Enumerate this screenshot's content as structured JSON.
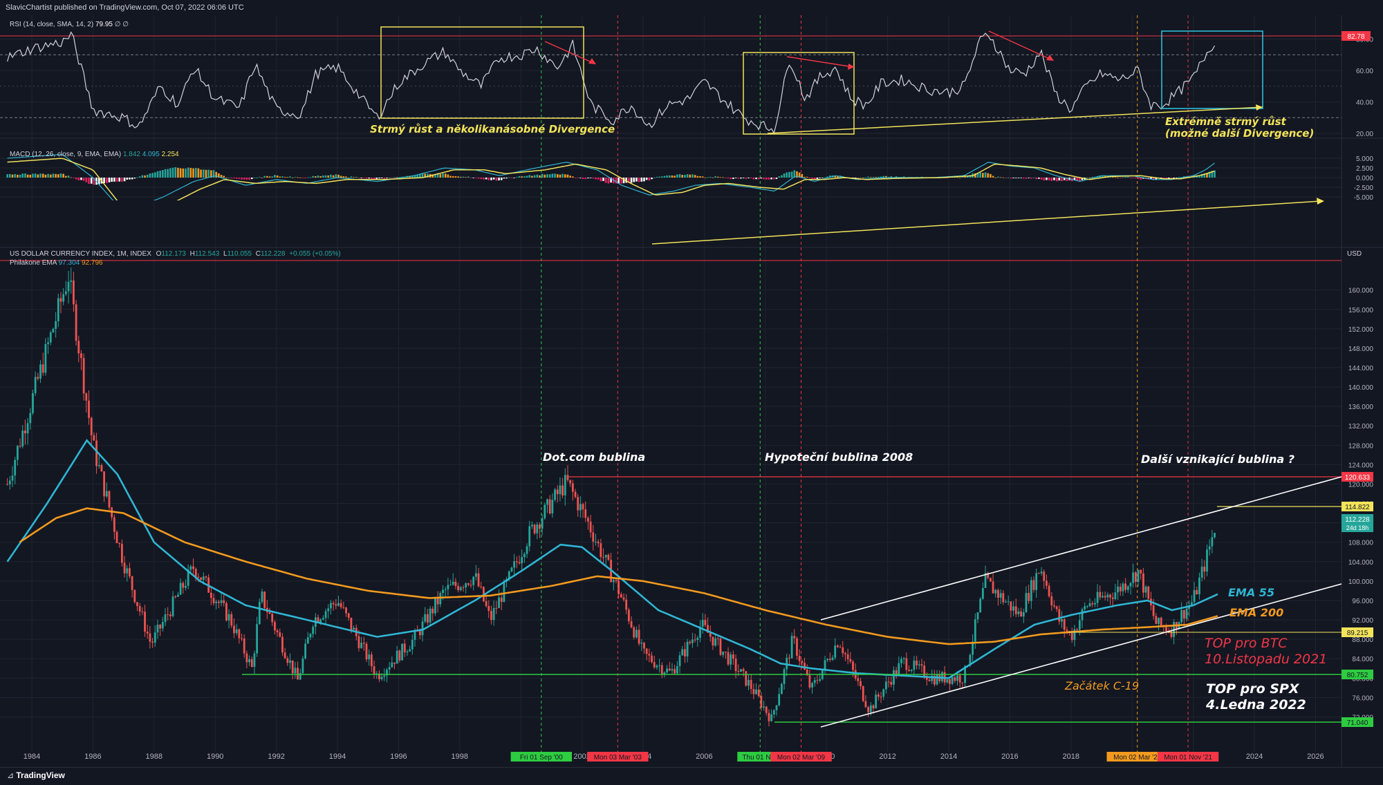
{
  "header": {
    "published": "SlavicChartist published on TradingView.com, Oct 07, 2022 06:06 UTC"
  },
  "footer": {
    "brand": "TradingView"
  },
  "rsi": {
    "title": "RSI (14, close, SMA, 14, 2)",
    "value": "79.95",
    "extra": "∅ ∅",
    "axis_labels": [
      "80.00",
      "60.00",
      "40.00",
      "20.00"
    ],
    "badge": "82.78",
    "note_left": "Strmý růst a několikanásobné Divergence",
    "note_right_1": "Extrémně strmý růst",
    "note_right_2": "(možné další Divergence)"
  },
  "macd": {
    "title": "MACD (12, 26, close, 9, EMA, EMA)",
    "v1": "1.842",
    "v2": "4.095",
    "v3": "2.254",
    "axis_labels": [
      "5.000",
      "2.500",
      "0.000",
      "-2.500",
      "-5.000"
    ]
  },
  "main": {
    "title": "US DOLLAR CURRENCY INDEX, 1M, INDEX",
    "o_label": "O",
    "o": "112.173",
    "h_label": "H",
    "h": "112.543",
    "l_label": "L",
    "l": "110.055",
    "c_label": "C",
    "c": "112.228",
    "change": "+0.055 (+0.05%)",
    "ema_title": "Philakone EMA",
    "ema_v1": "97.304",
    "ema_v2": "92.796",
    "currency": "USD",
    "annot_dotcom": "Dot.com bublina",
    "annot_mortgage": "Hypoteční bublina 2008",
    "annot_next": "Další vznikající bublina ?",
    "annot_ema55": "EMA 55",
    "annot_ema200": "EMA 200",
    "annot_btc_1": "TOP pro BTC",
    "annot_btc_2": "10.Listopadu 2021",
    "annot_c19": "Začátek C-19",
    "annot_spx_1": "TOP pro SPX",
    "annot_spx_2": "4.Ledna 2022",
    "badges": {
      "top": "120.633",
      "yellow": "114.822",
      "price": "112.228",
      "countdown": "24d 18h",
      "orange": "89.215",
      "green1": "80.752",
      "green2": "71.040"
    }
  },
  "colors": {
    "background": "#131722",
    "grid": "#1f2430",
    "up": "#26a69a",
    "down": "#ef5350",
    "ema55": "#2fb6d4",
    "ema200": "#f39a1e",
    "yellow": "#f3e45a",
    "red_line": "#f23645",
    "green_line": "#2ecc40",
    "cyan_box": "#2fc9e3"
  },
  "chart_data": {
    "type": "candlestick",
    "title": "US DOLLAR CURRENCY INDEX, 1M, INDEX",
    "x_ticks": [
      "1984",
      "1986",
      "1988",
      "1990",
      "1992",
      "1994",
      "1996",
      "1998",
      "2000",
      "2002",
      "2004",
      "2006",
      "2008",
      "2010",
      "2012",
      "2014",
      "2016",
      "2018",
      "2020",
      "2022",
      "2024",
      "2026"
    ],
    "y_ticks": [
      72,
      76,
      80,
      84,
      88,
      92,
      96,
      100,
      104,
      108,
      112,
      116,
      120,
      124,
      128,
      132,
      136,
      140,
      144,
      148,
      152,
      156,
      160
    ],
    "ylim": [
      70,
      163
    ],
    "x_range": [
      1983.2,
      2027.0
    ],
    "price_anchors": [
      [
        1983.2,
        120
      ],
      [
        1985.2,
        163.0
      ],
      [
        1986.0,
        128
      ],
      [
        1987.0,
        104
      ],
      [
        1987.9,
        87
      ],
      [
        1989.3,
        103
      ],
      [
        1990.5,
        92
      ],
      [
        1991.2,
        82
      ],
      [
        1991.5,
        97
      ],
      [
        1992.7,
        79.5
      ],
      [
        1993.2,
        92
      ],
      [
        1994.0,
        96
      ],
      [
        1995.3,
        80.5
      ],
      [
        1996.5,
        88
      ],
      [
        1997.5,
        98
      ],
      [
        1998.5,
        101
      ],
      [
        1999.0,
        92
      ],
      [
        2000.3,
        110
      ],
      [
        2001.5,
        120.5
      ],
      [
        2002.2,
        112
      ],
      [
        2003.2,
        98
      ],
      [
        2004.0,
        85
      ],
      [
        2004.9,
        81
      ],
      [
        2005.9,
        91
      ],
      [
        2006.8,
        84
      ],
      [
        2007.5,
        78.5
      ],
      [
        2008.2,
        71.5
      ],
      [
        2008.9,
        88
      ],
      [
        2009.5,
        77.5
      ],
      [
        2010.4,
        88
      ],
      [
        2011.4,
        73.5
      ],
      [
        2012.5,
        83.5
      ],
      [
        2013.5,
        80
      ],
      [
        2014.5,
        80.2
      ],
      [
        2015.2,
        100
      ],
      [
        2016.3,
        93
      ],
      [
        2017.0,
        103
      ],
      [
        2017.6,
        92
      ],
      [
        2018.0,
        88.5
      ],
      [
        2018.5,
        95
      ],
      [
        2019.5,
        98
      ],
      [
        2020.2,
        102
      ],
      [
        2020.8,
        91
      ],
      [
        2021.3,
        90
      ],
      [
        2021.6,
        93
      ],
      [
        2022.0,
        96
      ],
      [
        2022.4,
        104
      ],
      [
        2022.76,
        112.2
      ]
    ],
    "ema55_anchors": [
      [
        1983.2,
        104
      ],
      [
        1984.5,
        116
      ],
      [
        1985.8,
        129
      ],
      [
        1986.8,
        122
      ],
      [
        1988.0,
        108
      ],
      [
        1989.5,
        100
      ],
      [
        1991.0,
        95
      ],
      [
        1993.0,
        92
      ],
      [
        1995.3,
        88.5
      ],
      [
        1996.8,
        90
      ],
      [
        1998.5,
        96
      ],
      [
        2000.0,
        102
      ],
      [
        2001.3,
        107.5
      ],
      [
        2002.0,
        107
      ],
      [
        2003.0,
        102
      ],
      [
        2004.5,
        94
      ],
      [
        2006.0,
        90
      ],
      [
        2007.5,
        86
      ],
      [
        2008.5,
        83
      ],
      [
        2009.5,
        82
      ],
      [
        2011.0,
        81
      ],
      [
        2012.5,
        80.5
      ],
      [
        2014.0,
        80
      ],
      [
        2015.5,
        86
      ],
      [
        2016.8,
        91
      ],
      [
        2018.0,
        93
      ],
      [
        2019.5,
        95
      ],
      [
        2020.5,
        96
      ],
      [
        2021.3,
        94
      ],
      [
        2022.0,
        95
      ],
      [
        2022.8,
        97.3
      ]
    ],
    "ema200_anchors": [
      [
        1983.6,
        108
      ],
      [
        1984.8,
        113
      ],
      [
        1985.8,
        115
      ],
      [
        1987.0,
        114
      ],
      [
        1989.0,
        108
      ],
      [
        1991.0,
        104
      ],
      [
        1993.0,
        100.5
      ],
      [
        1995.0,
        98
      ],
      [
        1997.0,
        96.5
      ],
      [
        1999.0,
        97
      ],
      [
        2001.0,
        99
      ],
      [
        2002.5,
        101
      ],
      [
        2004.0,
        100
      ],
      [
        2006.0,
        97.5
      ],
      [
        2008.0,
        94
      ],
      [
        2010.0,
        91
      ],
      [
        2012.0,
        88.5
      ],
      [
        2014.0,
        87
      ],
      [
        2015.5,
        87.5
      ],
      [
        2017.0,
        89
      ],
      [
        2019.0,
        90
      ],
      [
        2020.5,
        90.5
      ],
      [
        2021.8,
        91
      ],
      [
        2022.8,
        92.8
      ]
    ],
    "rsi_range": [
      10,
      90
    ],
    "rsi_anchors": [
      [
        1983.2,
        68
      ],
      [
        1984.0,
        74
      ],
      [
        1985.0,
        78
      ],
      [
        1985.3,
        83
      ],
      [
        1986.0,
        35
      ],
      [
        1987.0,
        30
      ],
      [
        1987.5,
        24
      ],
      [
        1988.2,
        50
      ],
      [
        1988.8,
        38
      ],
      [
        1989.3,
        62
      ],
      [
        1990.0,
        42
      ],
      [
        1990.8,
        36
      ],
      [
        1991.3,
        64
      ],
      [
        1992.0,
        35
      ],
      [
        1992.8,
        32
      ],
      [
        1993.3,
        58
      ],
      [
        1994.0,
        62
      ],
      [
        1994.8,
        42
      ],
      [
        1995.3,
        30
      ],
      [
        1996.0,
        52
      ],
      [
        1996.8,
        64
      ],
      [
        1997.5,
        72
      ],
      [
        1998.0,
        60
      ],
      [
        1998.7,
        50
      ],
      [
        1999.3,
        68
      ],
      [
        2000.0,
        70
      ],
      [
        2000.5,
        74
      ],
      [
        2001.2,
        62
      ],
      [
        2001.7,
        76
      ],
      [
        2002.3,
        38
      ],
      [
        2003.0,
        28
      ],
      [
        2003.6,
        38
      ],
      [
        2004.2,
        25
      ],
      [
        2004.8,
        38
      ],
      [
        2005.5,
        42
      ],
      [
        2006.0,
        53
      ],
      [
        2006.7,
        40
      ],
      [
        2007.3,
        30
      ],
      [
        2008.0,
        24
      ],
      [
        2008.3,
        23
      ],
      [
        2008.8,
        68
      ],
      [
        2009.3,
        42
      ],
      [
        2009.8,
        56
      ],
      [
        2010.3,
        62
      ],
      [
        2010.8,
        42
      ],
      [
        2011.3,
        38
      ],
      [
        2011.8,
        52
      ],
      [
        2012.5,
        54
      ],
      [
        2013.3,
        48
      ],
      [
        2014.0,
        46
      ],
      [
        2014.5,
        50
      ],
      [
        2015.0,
        78
      ],
      [
        2015.3,
        84
      ],
      [
        2016.0,
        60
      ],
      [
        2016.5,
        58
      ],
      [
        2017.0,
        72
      ],
      [
        2017.5,
        45
      ],
      [
        2018.0,
        35
      ],
      [
        2018.5,
        50
      ],
      [
        2019.0,
        58
      ],
      [
        2019.6,
        54
      ],
      [
        2020.2,
        60
      ],
      [
        2020.6,
        38
      ],
      [
        2021.0,
        38
      ],
      [
        2021.5,
        46
      ],
      [
        2022.0,
        55
      ],
      [
        2022.4,
        70
      ],
      [
        2022.76,
        80
      ]
    ],
    "macd_range": [
      -7,
      7
    ],
    "macd_line_anchors": [
      [
        1983.2,
        5
      ],
      [
        1985.0,
        6
      ],
      [
        1986.0,
        0
      ],
      [
        1987.0,
        -9
      ],
      [
        1988.3,
        -5
      ],
      [
        1989.3,
        -1
      ],
      [
        1990.0,
        0.5
      ],
      [
        1991.0,
        -2
      ],
      [
        1992.0,
        -0.5
      ],
      [
        1993.0,
        -1.5
      ],
      [
        1994.0,
        0
      ],
      [
        1995.3,
        -1
      ],
      [
        1996.5,
        0.5
      ],
      [
        1997.5,
        2.5
      ],
      [
        1998.5,
        2
      ],
      [
        1999.3,
        0.5
      ],
      [
        2000.5,
        2.5
      ],
      [
        2001.5,
        4
      ],
      [
        2002.5,
        2
      ],
      [
        2003.3,
        -2
      ],
      [
        2004.2,
        -4.5
      ],
      [
        2005.0,
        -3.5
      ],
      [
        2005.7,
        -2
      ],
      [
        2006.5,
        -1.5
      ],
      [
        2007.5,
        -2.5
      ],
      [
        2008.3,
        -3.5
      ],
      [
        2009.0,
        0.5
      ],
      [
        2009.6,
        -1
      ],
      [
        2010.3,
        0.5
      ],
      [
        2011.0,
        -0.5
      ],
      [
        2012.0,
        0
      ],
      [
        2013.5,
        0
      ],
      [
        2014.5,
        0.5
      ],
      [
        2015.3,
        4
      ],
      [
        2016.0,
        3
      ],
      [
        2016.8,
        2.5
      ],
      [
        2017.5,
        0.5
      ],
      [
        2018.3,
        -1
      ],
      [
        2019.0,
        0.5
      ],
      [
        2020.0,
        0.5
      ],
      [
        2020.7,
        -0.5
      ],
      [
        2021.3,
        -0.5
      ],
      [
        2022.0,
        0.5
      ],
      [
        2022.4,
        2
      ],
      [
        2022.76,
        4.1
      ]
    ],
    "macd_signal_anchors": [
      [
        1983.2,
        4
      ],
      [
        1985.0,
        5
      ],
      [
        1986.0,
        2
      ],
      [
        1987.0,
        -8
      ],
      [
        1988.5,
        -7
      ],
      [
        1989.5,
        -3
      ],
      [
        1990.3,
        -0.5
      ],
      [
        1991.3,
        -1.5
      ],
      [
        1992.3,
        -1
      ],
      [
        1993.3,
        -1.5
      ],
      [
        1994.3,
        -0.5
      ],
      [
        1995.5,
        -0.5
      ],
      [
        1996.8,
        0
      ],
      [
        1997.8,
        2
      ],
      [
        1998.8,
        2
      ],
      [
        1999.5,
        1
      ],
      [
        2000.8,
        2
      ],
      [
        2001.8,
        3.5
      ],
      [
        2002.8,
        2
      ],
      [
        2003.6,
        -1.5
      ],
      [
        2004.4,
        -4.5
      ],
      [
        2005.3,
        -3.8
      ],
      [
        2006.0,
        -2
      ],
      [
        2006.8,
        -1.5
      ],
      [
        2007.8,
        -2.5
      ],
      [
        2008.6,
        -3
      ],
      [
        2009.3,
        -0.5
      ],
      [
        2009.9,
        -0.5
      ],
      [
        2010.6,
        0
      ],
      [
        2011.3,
        -0.5
      ],
      [
        2012.3,
        -0.2
      ],
      [
        2013.8,
        0
      ],
      [
        2014.8,
        0.5
      ],
      [
        2015.5,
        3.5
      ],
      [
        2016.3,
        3
      ],
      [
        2017.0,
        2.5
      ],
      [
        2017.8,
        0.8
      ],
      [
        2018.6,
        -0.5
      ],
      [
        2019.3,
        0.3
      ],
      [
        2020.3,
        0.5
      ],
      [
        2021.0,
        -0.3
      ],
      [
        2021.6,
        -0.3
      ],
      [
        2022.2,
        0.5
      ],
      [
        2022.76,
        1.8
      ]
    ]
  },
  "time_badges": [
    {
      "text": "Fri 01 Sep '00",
      "color": "#2ecc40"
    },
    {
      "text": "Mon 03 Mar '03",
      "color": "#f23645"
    },
    {
      "text": "Thu 01 Nov",
      "color": "#2ecc40"
    },
    {
      "text": "Mon 02 Mar '09",
      "color": "#f23645"
    },
    {
      "text": "Mon 02 Mar '20",
      "color": "#f39a1e"
    },
    {
      "text": "Mon 01 Nov '21",
      "color": "#f23645"
    }
  ]
}
